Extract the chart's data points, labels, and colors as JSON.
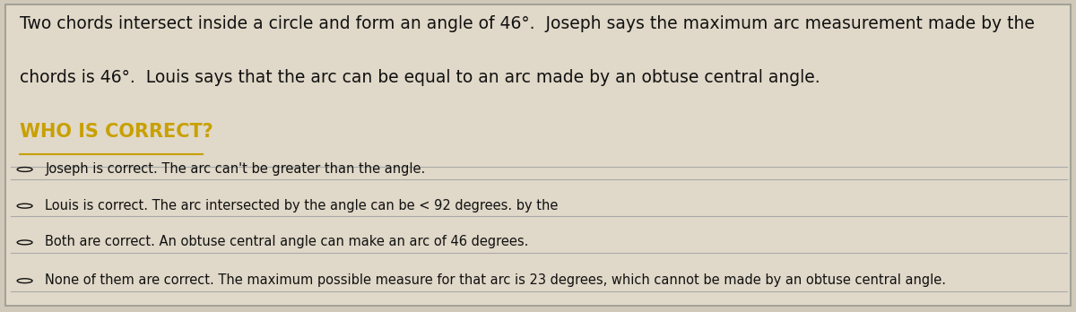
{
  "background_color": "#d0c8b8",
  "panel_color": "#e0d8c8",
  "title_text_line1": "Two chords intersect inside a circle and form an angle of 46°.  Joseph says the maximum arc measurement made by the",
  "title_text_line2": "chords is 46°.  Louis says that the arc can be equal to an arc made by an obtuse central angle.",
  "question_text": "WHO IS CORRECT?",
  "question_color": "#c8a000",
  "options": [
    "Joseph is correct. The arc can't be greater than the angle.",
    "Louis is correct. The arc intersected by the angle can be < 92 degrees. by the",
    "Both are correct. An obtuse central angle can make an arc of 46 degrees.",
    "None of them are correct. The maximum possible measure for that arc is 23 degrees, which cannot be made by an obtuse central angle."
  ],
  "title_fontsize": 13.5,
  "option_fontsize": 10.5,
  "question_fontsize": 15,
  "border_color": "#999990",
  "line_color": "#aaaaaa",
  "text_color": "#111111"
}
